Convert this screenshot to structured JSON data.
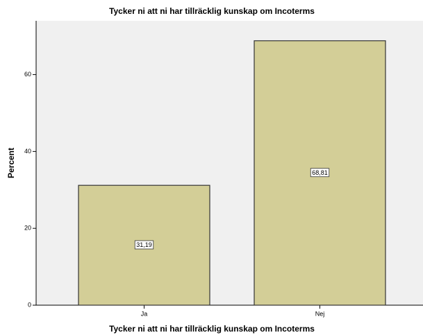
{
  "chart_data": {
    "type": "bar",
    "title": "Tycker ni att ni har tillräcklig kunskap om Incoterms",
    "x_label": "Tycker ni att ni har tillräcklig kunskap om Incoterms",
    "y_label": "Percent",
    "categories": [
      "Ja",
      "Nej"
    ],
    "values": [
      31.19,
      68.81
    ],
    "value_labels": [
      "31,19",
      "68,81"
    ],
    "color": "#d3ce97",
    "ylim": [
      0,
      74
    ],
    "yticks": [
      0,
      20,
      40,
      60
    ],
    "grid": false
  }
}
